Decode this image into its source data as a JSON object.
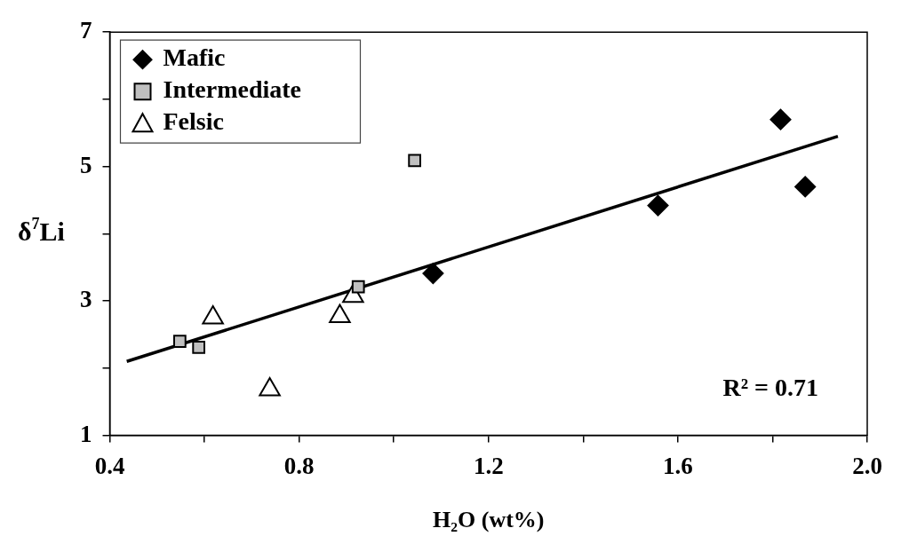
{
  "chart_data": {
    "type": "scatter",
    "xlabel": "H₂O (wt%)",
    "ylabel": "δ$^{7}$Li",
    "xlim": [
      0.4,
      2.0
    ],
    "ylim": [
      1,
      7
    ],
    "xticks": [
      0.4,
      {
        "value": 0.6,
        "label": null
      },
      0.8,
      {
        "value": 1.0,
        "label": null
      },
      1.2,
      {
        "value": 1.4,
        "label": null
      },
      1.6,
      {
        "value": 1.8,
        "label": null
      },
      {
        "value": 2,
        "label": "2.0"
      }
    ],
    "yticks": [
      1,
      {
        "value": 2,
        "label": null
      },
      3,
      {
        "value": 4,
        "label": null
      },
      5,
      {
        "value": 6,
        "label": null
      },
      7
    ],
    "grid": false,
    "legend": "top left",
    "annotations": [
      "R² = 0.71"
    ],
    "series": [
      {
        "name": "Mafic",
        "color": "#000000",
        "marker": "diamond",
        "x": [
          1.817,
          1.869,
          1.558,
          1.083
        ],
        "values": [
          5.7,
          4.7,
          4.42,
          3.41
        ]
      },
      {
        "name": "Intermediate",
        "color": "#c0c0c0",
        "marker": "square",
        "x": [
          1.044,
          0.925,
          0.548,
          0.588
        ],
        "values": [
          5.09,
          3.21,
          2.4,
          2.31
        ]
      },
      {
        "name": "Felsic",
        "color": "#ffffff",
        "marker": "triangle",
        "x": [
          0.618,
          0.738,
          0.886,
          0.914
        ],
        "values": [
          2.75,
          1.68,
          2.77,
          3.07
        ]
      },
      {
        "type": "line",
        "color": "#000000",
        "marker": "none",
        "x": [
          0.436,
          1.938
        ],
        "values": [
          2.1,
          5.45
        ]
      }
    ]
  }
}
